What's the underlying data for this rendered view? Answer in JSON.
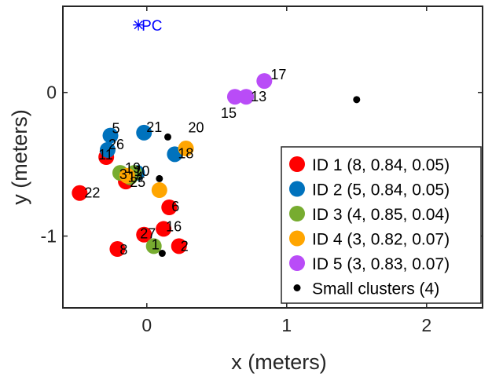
{
  "chart_data": {
    "type": "scatter",
    "xlabel": "x (meters)",
    "ylabel": "y (meters)",
    "xlim": [
      -0.6,
      2.4
    ],
    "ylim": [
      -1.5,
      0.6
    ],
    "xticks": [
      0,
      1,
      2
    ],
    "xtick_labels": [
      "0",
      "1",
      "2"
    ],
    "yticks": [
      -1,
      0
    ],
    "ytick_labels": [
      "-1",
      "0"
    ],
    "grid": false,
    "legend_position": "bottom-right",
    "reference_point": {
      "label": "PC",
      "x": -0.06,
      "y": 0.47,
      "color": "#0000ff",
      "marker": "asterisk"
    },
    "series": [
      {
        "name": "ID 1 (8, 0.84, 0.05)",
        "color": "#ff0000",
        "points": [
          {
            "x": -0.48,
            "y": -0.7,
            "label": "22"
          },
          {
            "x": -0.29,
            "y": -0.45,
            "label": "11"
          },
          {
            "x": -0.21,
            "y": -1.09,
            "label": "8"
          },
          {
            "x": -0.15,
            "y": -0.62,
            "label": "25"
          },
          {
            "x": -0.02,
            "y": -0.99,
            "label": "27"
          },
          {
            "x": 0.12,
            "y": -0.95,
            "label": "16"
          },
          {
            "x": 0.16,
            "y": -0.8,
            "label": "6"
          },
          {
            "x": 0.23,
            "y": -1.07,
            "label": "2"
          }
        ]
      },
      {
        "name": "ID 2 (5, 0.84, 0.05)",
        "color": "#0072bd",
        "points": [
          {
            "x": -0.26,
            "y": -0.3,
            "label": "5"
          },
          {
            "x": -0.28,
            "y": -0.4,
            "label": "26"
          },
          {
            "x": -0.02,
            "y": -0.28,
            "label": "21"
          },
          {
            "x": 0.2,
            "y": -0.43,
            "label": "18"
          },
          {
            "x": -0.07,
            "y": -0.56,
            "label": "10"
          }
        ]
      },
      {
        "name": "ID 3 (4, 0.85, 0.04)",
        "color": "#77ac30",
        "points": [
          {
            "x": -0.19,
            "y": -0.56,
            "label": "19"
          },
          {
            "x": -0.12,
            "y": -0.59,
            "label": "14"
          },
          {
            "x": -0.09,
            "y": -0.56,
            "label": ""
          },
          {
            "x": 0.05,
            "y": -1.07,
            "label": "1"
          }
        ]
      },
      {
        "name": "ID 4 (3, 0.82, 0.07)",
        "color": "#ffa500",
        "points": [
          {
            "x": 0.28,
            "y": -0.39,
            "label": ""
          },
          {
            "x": -0.14,
            "y": -0.58,
            "label": "3"
          },
          {
            "x": 0.09,
            "y": -0.68,
            "label": ""
          }
        ]
      },
      {
        "name": "ID 5 (3, 0.83, 0.07)",
        "color": "#b94cf7",
        "points": [
          {
            "x": 0.63,
            "y": -0.03,
            "label": "15"
          },
          {
            "x": 0.71,
            "y": -0.03,
            "label": "13"
          },
          {
            "x": 0.84,
            "y": 0.08,
            "label": "17"
          }
        ]
      },
      {
        "name": "Small clusters (4)",
        "color": "#000000",
        "small": true,
        "points": [
          {
            "x": 0.15,
            "y": -0.31,
            "label": "20"
          },
          {
            "x": 0.09,
            "y": -0.6,
            "label": ""
          },
          {
            "x": 0.11,
            "y": -1.12,
            "label": ""
          },
          {
            "x": 1.5,
            "y": -0.05,
            "label": ""
          }
        ]
      }
    ]
  }
}
